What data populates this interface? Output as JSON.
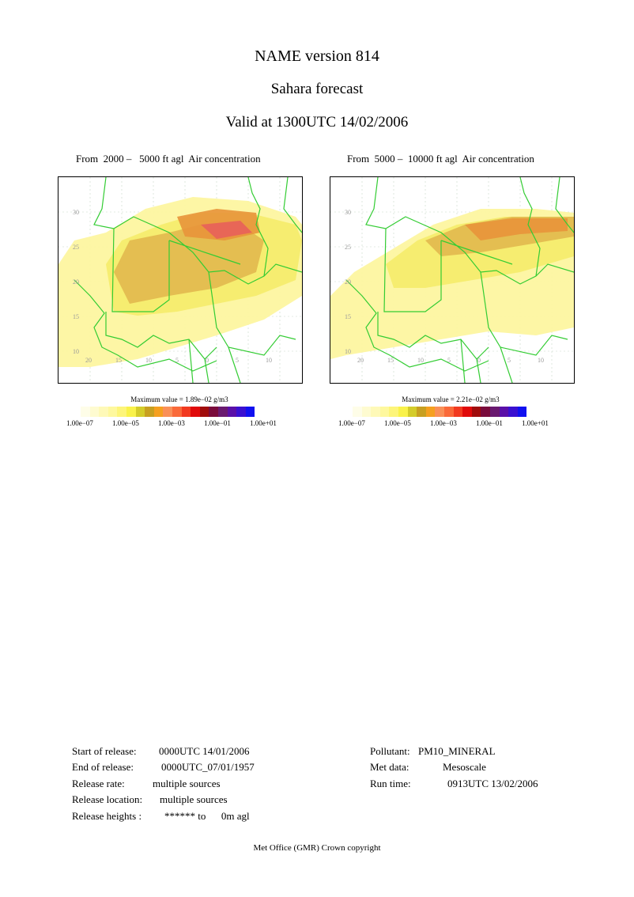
{
  "header": {
    "title": "NAME version 814",
    "subtitle": "Sahara forecast",
    "valid": "Valid at 1300UTC 14/02/2006"
  },
  "panels": [
    {
      "label": "From  2000 –   5000 ft agl  Air concentration",
      "max_value": "Maximum value = 1.89e−02 g/m3",
      "lat_labels": [
        "30",
        "25",
        "20",
        "15",
        "10"
      ],
      "lon_labels": [
        "20",
        "15",
        "10",
        "5",
        "0",
        "5",
        "10"
      ]
    },
    {
      "label": "From  5000 –  10000 ft agl  Air concentration",
      "max_value": "Maximum value = 2.21e−02 g/m3",
      "lat_labels": [
        "30",
        "25",
        "20",
        "15",
        "10"
      ],
      "lon_labels": [
        "20",
        "15",
        "10",
        "5",
        "0",
        "5",
        "10"
      ]
    }
  ],
  "legend": {
    "colors": [
      "#fefde8",
      "#fefbd0",
      "#fef9b8",
      "#fef89e",
      "#fdf57a",
      "#f9f24a",
      "#d4cc2a",
      "#c8a020",
      "#f5a020",
      "#fa9058",
      "#fa6a3a",
      "#f23a20",
      "#e00a0a",
      "#a00c0c",
      "#7a0c3c",
      "#6a1a70",
      "#5a10a8",
      "#3a10d0",
      "#1010f0"
    ],
    "ticks": [
      "1.00e−07",
      "1.00e−05",
      "1.00e−03",
      "1.00e−01",
      "1.00e+01"
    ]
  },
  "release_info": {
    "start_label": "Start of release:",
    "start_value": "0000UTC 14/01/2006",
    "end_label": "End of release:",
    "end_value": "0000UTC_07/01/1957",
    "rate_label": "Release rate:",
    "rate_value": "multiple sources",
    "location_label": "Release location:",
    "location_value": "multiple sources",
    "heights_label": "Release heights :",
    "heights_value": "****** to      0m agl"
  },
  "run_info": {
    "pollutant_label": "Pollutant:",
    "pollutant_value": "PM10_MINERAL",
    "met_label": "Met data:",
    "met_value": "Mesoscale",
    "run_label": "Run time:",
    "run_value": "0913UTC 13/02/2006"
  },
  "footer": "Met Office (GMR)  Crown copyright",
  "plume_colors": {
    "light": "#fdf6a0",
    "yellow": "#f5ec6a",
    "tan": "#e2b84e",
    "orange": "#e8943a",
    "red": "#e8605a",
    "borders": "#33cc33",
    "grid": "#c8d8c8"
  }
}
